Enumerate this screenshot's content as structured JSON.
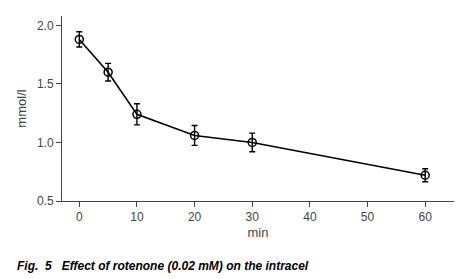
{
  "chart_data": {
    "type": "line",
    "x": [
      0,
      5,
      10,
      20,
      30,
      60
    ],
    "values": [
      1.88,
      1.6,
      1.24,
      1.06,
      1.0,
      0.72
    ],
    "yerr": [
      0.065,
      0.075,
      0.09,
      0.085,
      0.08,
      0.055
    ],
    "xlabel": "min",
    "ylabel": "mmol/l",
    "xlim": [
      -3,
      65
    ],
    "ylim": [
      0.5,
      2.08
    ],
    "xticks": [
      0,
      10,
      20,
      30,
      40,
      50,
      60
    ],
    "yticks": [
      0.5,
      {
        "value": 1.0,
        "label": "1.0"
      },
      1.5,
      {
        "value": 2.0,
        "label": "2.0"
      }
    ],
    "color": "#000000",
    "marker": "circle-open",
    "line_style": "solid",
    "grid": false,
    "annotations": [
      {
        "text": "Fig.  5   Effect of rotenone (0.02 mM) on the intracel"
      }
    ]
  }
}
